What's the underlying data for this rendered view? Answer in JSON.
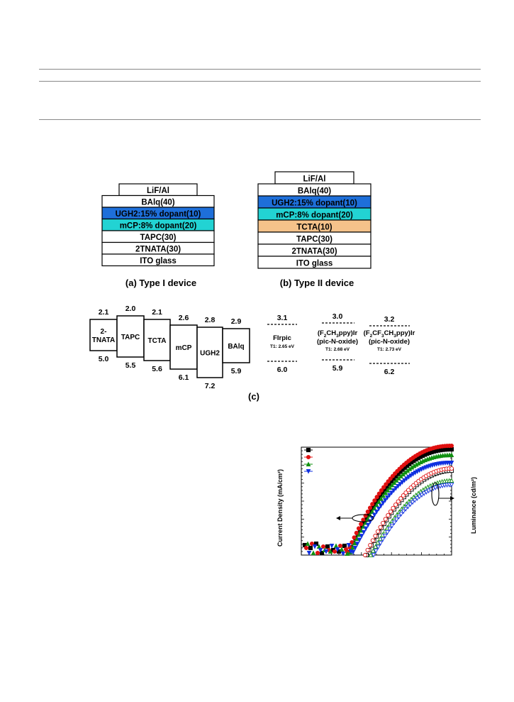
{
  "device_a": {
    "caption": "(a) Type I device",
    "layers": [
      {
        "label": "LiF/Al",
        "fill": "#ffffff"
      },
      {
        "label": "BAlq(40)",
        "fill": "#ffffff"
      },
      {
        "label": "UGH2:15% dopant(10)",
        "fill": "#1e6fd9"
      },
      {
        "label": "mCP:8% dopant(20)",
        "fill": "#22d3d3"
      },
      {
        "label": "TAPC(30)",
        "fill": "#ffffff"
      },
      {
        "label": "2TNATA(30)",
        "fill": "#ffffff"
      },
      {
        "label": "ITO glass",
        "fill": "#ffffff"
      }
    ]
  },
  "device_b": {
    "caption": "(b) Type II device",
    "layers": [
      {
        "label": "LiF/Al",
        "fill": "#ffffff"
      },
      {
        "label": "BAlq(40)",
        "fill": "#ffffff"
      },
      {
        "label": "UGH2:15% dopant(10)",
        "fill": "#1e6fd9"
      },
      {
        "label": "mCP:8% dopant(20)",
        "fill": "#22d3d3"
      },
      {
        "label": "TCTA(10)",
        "fill": "#f5c28a"
      },
      {
        "label": "TAPC(30)",
        "fill": "#ffffff"
      },
      {
        "label": "2TNATA(30)",
        "fill": "#ffffff"
      },
      {
        "label": "ITO glass",
        "fill": "#ffffff"
      }
    ]
  },
  "energy": {
    "caption": "(c)",
    "materials": [
      {
        "name1": "2-",
        "name2": "TNATA",
        "lumo": "2.1",
        "homo": "5.0"
      },
      {
        "name1": "",
        "name2": "TAPC",
        "lumo": "2.0",
        "homo": "5.5"
      },
      {
        "name1": "",
        "name2": "TCTA",
        "lumo": "2.1",
        "homo": "5.6"
      },
      {
        "name1": "",
        "name2": "mCP",
        "lumo": "2.6",
        "homo": "6.1"
      },
      {
        "name1": "",
        "name2": "UGH2",
        "lumo": "2.8",
        "homo": "7.2"
      },
      {
        "name1": "",
        "name2": "BAlq",
        "lumo": "2.9",
        "homo": "5.9"
      }
    ],
    "dopants": [
      {
        "line1": "FIrpic",
        "line2": "",
        "t1": "T1: 2.65 eV",
        "lumo": "3.1",
        "homo": "6.0"
      },
      {
        "line1": "(F",
        "line2": "(pic-N-oxide)",
        "t1": "T1: 2.68 eV",
        "lumo": "3.0",
        "homo": "5.9"
      },
      {
        "line1": "(F",
        "line2": "(pic-N-oxide)",
        "t1": "T1: 2.73 eV",
        "lumo": "3.2",
        "homo": "6.2"
      }
    ]
  },
  "chart_data": {
    "type": "scatter",
    "ylabel": "Current Density (mA/cm²)",
    "y2label": "Luminance (cd/m²)",
    "series": [
      {
        "marker": "square",
        "color": "#000000"
      },
      {
        "marker": "circle",
        "color": "#e01010"
      },
      {
        "marker": "triangle-up",
        "color": "#109010"
      },
      {
        "marker": "triangle-down",
        "color": "#1030e0"
      }
    ]
  }
}
